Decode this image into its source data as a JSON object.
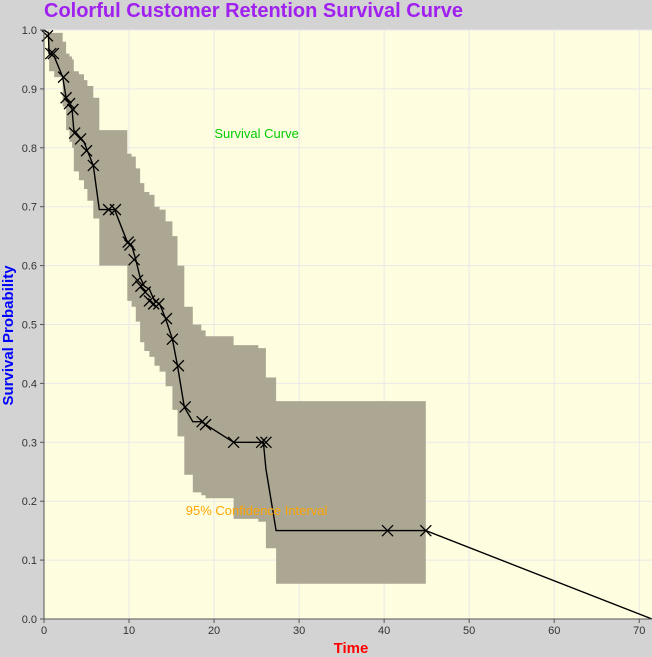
{
  "chart_data": {
    "type": "line",
    "title": "Colorful Customer Retention Survival Curve",
    "xlabel": "Time",
    "ylabel": "Survival Probability",
    "xlim": [
      0,
      71.5
    ],
    "ylim": [
      0,
      1.0
    ],
    "x_ticks": [
      "0",
      "10",
      "20",
      "30",
      "40",
      "50",
      "60",
      "70"
    ],
    "y_ticks": [
      "0.0",
      "0.1",
      "0.2",
      "0.3",
      "0.4",
      "0.5",
      "0.6",
      "0.7",
      "0.8",
      "0.9",
      "1.0"
    ],
    "grid": true,
    "series": [
      {
        "name": "Survival Curve",
        "type": "step-line",
        "x": [
          0,
          0.5,
          0.6,
          1.2,
          2.2,
          2.6,
          3.0,
          3.3,
          3.5,
          4.1,
          4.7,
          5.1,
          5.8,
          6.5,
          7.6,
          8.3,
          9.8,
          10.3,
          10.8,
          11.3,
          11.8,
          12.4,
          13.0,
          13.6,
          14.3,
          15.1,
          15.7,
          16.5,
          17.5,
          18.5,
          19.0,
          22.3,
          25.2,
          25.8,
          26.1,
          27.3,
          40.4,
          44.9,
          71.5
        ],
        "y": [
          1.0,
          0.995,
          0.96,
          0.955,
          0.92,
          0.885,
          0.875,
          0.865,
          0.83,
          0.82,
          0.81,
          0.795,
          0.77,
          0.695,
          0.695,
          0.695,
          0.64,
          0.635,
          0.61,
          0.58,
          0.565,
          0.56,
          0.54,
          0.535,
          0.51,
          0.475,
          0.43,
          0.36,
          0.335,
          0.335,
          0.33,
          0.3,
          0.3,
          0.3,
          0.255,
          0.15,
          0.15,
          0.15,
          0.0
        ],
        "color": "#000000"
      },
      {
        "name": "95% Confidence Interval",
        "type": "band",
        "x": [
          0,
          0.5,
          0.6,
          1.2,
          2.2,
          2.6,
          3.0,
          3.3,
          3.5,
          4.1,
          4.7,
          5.1,
          5.8,
          6.5,
          7.6,
          8.3,
          9.8,
          10.3,
          10.8,
          11.3,
          11.8,
          12.4,
          13.0,
          13.6,
          14.3,
          15.1,
          15.7,
          16.5,
          17.5,
          18.5,
          19.0,
          22.3,
          25.2,
          25.8,
          26.1,
          27.3,
          44.9
        ],
        "upper": [
          1.0,
          1.0,
          0.995,
          0.995,
          0.98,
          0.96,
          0.955,
          0.95,
          0.93,
          0.925,
          0.915,
          0.905,
          0.885,
          0.83,
          0.83,
          0.83,
          0.79,
          0.785,
          0.765,
          0.74,
          0.725,
          0.72,
          0.7,
          0.695,
          0.675,
          0.65,
          0.6,
          0.53,
          0.5,
          0.49,
          0.48,
          0.465,
          0.46,
          0.46,
          0.41,
          0.37,
          0.37
        ],
        "lower": [
          1.0,
          0.96,
          0.93,
          0.92,
          0.87,
          0.83,
          0.81,
          0.8,
          0.76,
          0.745,
          0.73,
          0.71,
          0.68,
          0.6,
          0.6,
          0.6,
          0.54,
          0.53,
          0.505,
          0.47,
          0.455,
          0.445,
          0.43,
          0.42,
          0.395,
          0.355,
          0.31,
          0.245,
          0.215,
          0.21,
          0.205,
          0.17,
          0.165,
          0.165,
          0.12,
          0.06,
          0.06
        ],
        "color": "#aca793"
      }
    ],
    "censored_marks": {
      "x": [
        0.4,
        0.8,
        1.1,
        2.3,
        2.6,
        3.0,
        3.4,
        3.6,
        4.3,
        5.0,
        5.8,
        7.6,
        8.4,
        9.9,
        10.1,
        10.6,
        11.0,
        11.4,
        11.9,
        12.4,
        12.9,
        13.5,
        14.4,
        15.1,
        15.8,
        16.6,
        18.6,
        19.0,
        22.3,
        25.6,
        26.1,
        40.4,
        44.9
      ],
      "y": [
        0.99,
        0.96,
        0.96,
        0.92,
        0.885,
        0.875,
        0.865,
        0.825,
        0.815,
        0.795,
        0.77,
        0.695,
        0.695,
        0.64,
        0.635,
        0.61,
        0.575,
        0.565,
        0.555,
        0.54,
        0.535,
        0.535,
        0.51,
        0.475,
        0.43,
        0.36,
        0.335,
        0.33,
        0.3,
        0.3,
        0.3,
        0.15,
        0.15
      ]
    },
    "annotations": [
      {
        "text": "Survival Curve",
        "x": 25,
        "y": 0.825,
        "color": "#00cc00"
      },
      {
        "text": "95% Confidence Interval",
        "x": 25,
        "y": 0.185,
        "color": "#ffa500"
      }
    ]
  },
  "colors": {
    "figure_bg": "#d3d3d3",
    "plot_bg": "#fffde0",
    "grid": "#e8e8e8",
    "title": "#a020f0",
    "xlabel": "#ff0000",
    "ylabel": "#0000ff",
    "line": "#000000",
    "band": "#aca793"
  }
}
